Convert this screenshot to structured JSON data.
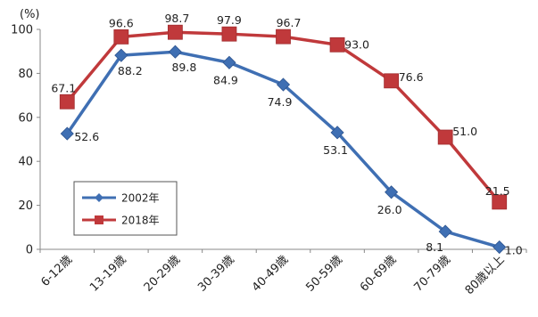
{
  "chart_data": {
    "type": "line",
    "ylabel": "(%)",
    "ylim": [
      0,
      100
    ],
    "yticks": [
      0,
      20,
      40,
      60,
      80,
      100
    ],
    "categories": [
      "6-12歳",
      "13-19歳",
      "20-29歳",
      "30-39歳",
      "40-49歳",
      "50-59歳",
      "60-69歳",
      "70-79歳",
      "80歳以上"
    ],
    "series": [
      {
        "name": "2002年",
        "color": "#3f6fb3",
        "marker": "diamond",
        "values": [
          52.6,
          88.2,
          89.8,
          84.9,
          74.9,
          53.1,
          26.0,
          8.1,
          1.0
        ],
        "labels": [
          "52.6",
          "88.2",
          "89.8",
          "84.9",
          "74.9",
          "53.1",
          "26.0",
          "8.1",
          "1.0"
        ]
      },
      {
        "name": "2018年",
        "color": "#c0393b",
        "marker": "square",
        "values": [
          67.1,
          96.6,
          98.7,
          97.9,
          96.7,
          93.0,
          76.6,
          51.0,
          21.5
        ],
        "labels": [
          "67.1",
          "96.6",
          "98.7",
          "97.9",
          "96.7",
          "93.0",
          "76.6",
          "51.0",
          "21.5"
        ]
      }
    ],
    "grid": false,
    "legend": "bottom-left"
  }
}
